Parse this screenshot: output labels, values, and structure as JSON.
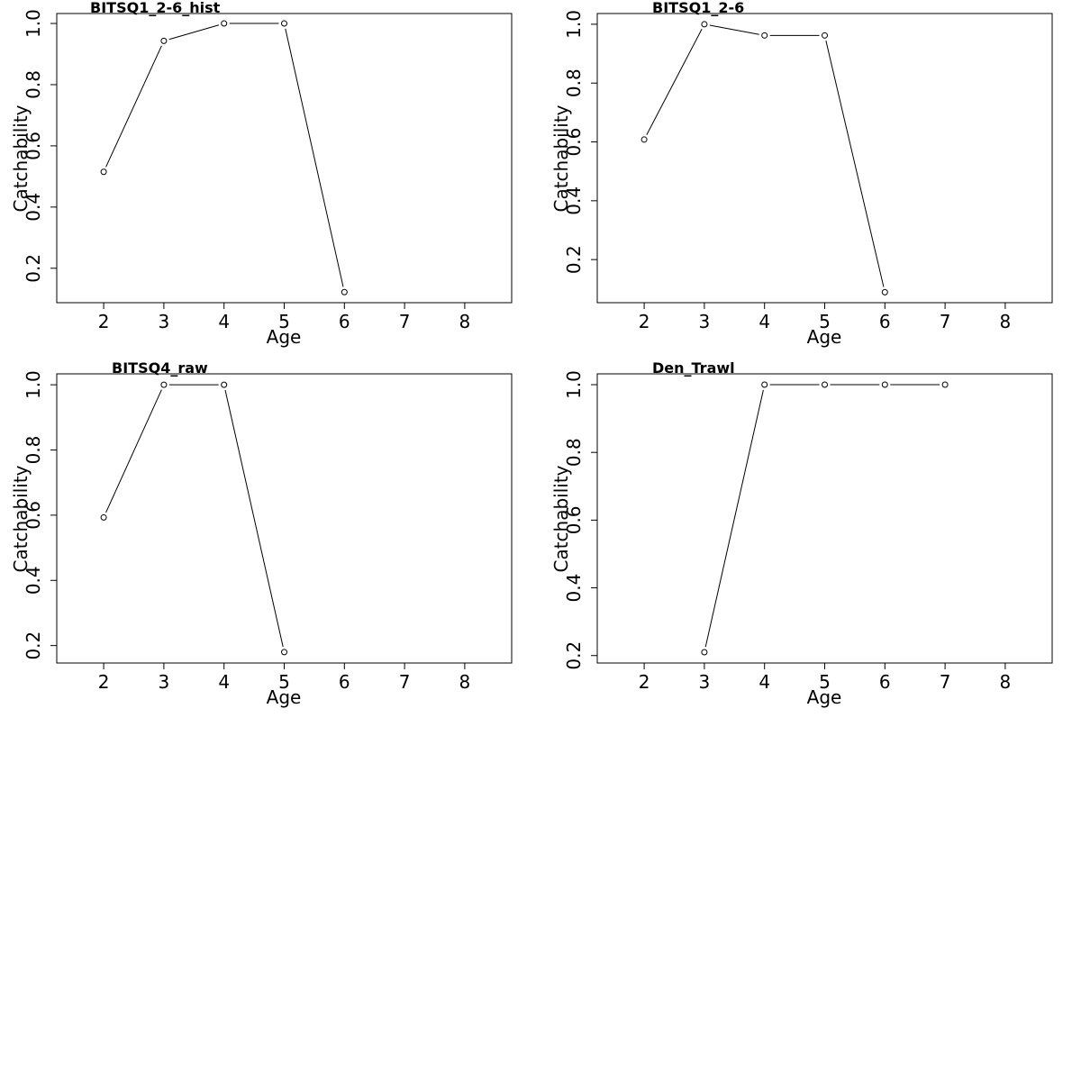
{
  "chart_data": [
    {
      "type": "line",
      "title": "BITSQ1_2-6_hist",
      "xlabel": "Age",
      "ylabel": "Catchability",
      "xlim": [
        1.22,
        8.78
      ],
      "ylim": [
        0.0875,
        1.0325
      ],
      "xticks": [
        "2",
        "3",
        "4",
        "5",
        "6",
        "7",
        "8"
      ],
      "yticks": [
        "0.2",
        "0.4",
        "0.6",
        "0.8",
        "1.0"
      ],
      "series": [
        {
          "x": [
            2,
            3,
            4,
            5,
            6
          ],
          "y": [
            0.515,
            0.943,
            1.0,
            1.0,
            0.122
          ]
        }
      ],
      "grid": false,
      "markers": "open-circle"
    },
    {
      "type": "line",
      "title": "BITSQ1_2-6",
      "xlabel": "Age",
      "ylabel": "Catchability",
      "xlim": [
        1.22,
        8.78
      ],
      "ylim": [
        0.0535,
        1.0365
      ],
      "xticks": [
        "2",
        "3",
        "4",
        "5",
        "6",
        "7",
        "8"
      ],
      "yticks": [
        "0.2",
        "0.4",
        "0.6",
        "0.8",
        "1.0"
      ],
      "series": [
        {
          "x": [
            2,
            3,
            4,
            5,
            6
          ],
          "y": [
            0.608,
            1.0,
            0.962,
            0.962,
            0.089
          ]
        }
      ],
      "grid": false,
      "markers": "open-circle"
    },
    {
      "type": "line",
      "title": "BITSQ4_raw",
      "xlabel": "Age",
      "ylabel": "Catchability",
      "xlim": [
        1.22,
        8.78
      ],
      "ylim": [
        0.1465,
        1.0335
      ],
      "xticks": [
        "2",
        "3",
        "4",
        "5",
        "6",
        "7",
        "8"
      ],
      "yticks": [
        "0.2",
        "0.4",
        "0.6",
        "0.8",
        "1.0"
      ],
      "series": [
        {
          "x": [
            2,
            3,
            4,
            5
          ],
          "y": [
            0.593,
            1.0,
            1.0,
            0.18
          ]
        }
      ],
      "grid": false,
      "markers": "open-circle"
    },
    {
      "type": "line",
      "title": "Den_Trawl",
      "xlabel": "Age",
      "ylabel": "Catchability",
      "xlim": [
        1.22,
        8.78
      ],
      "ylim": [
        0.178,
        1.032
      ],
      "xticks": [
        "2",
        "3",
        "4",
        "5",
        "6",
        "7",
        "8"
      ],
      "yticks": [
        "0.2",
        "0.4",
        "0.6",
        "0.8",
        "1.0"
      ],
      "series": [
        {
          "x": [
            3,
            4,
            5,
            6,
            7
          ],
          "y": [
            0.21,
            1.0,
            1.0,
            1.0,
            1.0
          ]
        }
      ],
      "grid": false,
      "markers": "open-circle"
    }
  ]
}
